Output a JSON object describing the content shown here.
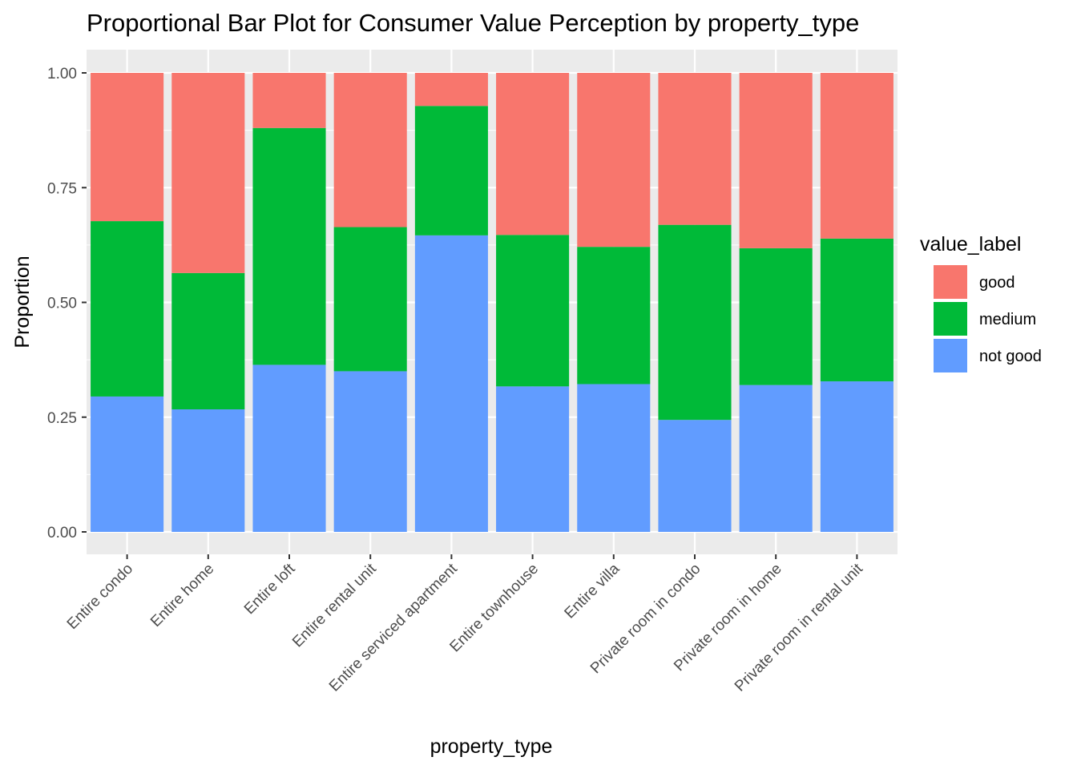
{
  "chart_data": {
    "type": "bar",
    "stacked": "proportional",
    "title": "Proportional Bar Plot for Consumer Value Perception by property_type",
    "xlabel": "property_type",
    "ylabel": "Proportion",
    "ylim": [
      0,
      1
    ],
    "yticks": [
      {
        "value": 0,
        "label": "0.00"
      },
      {
        "value": 0.25,
        "label": "0.25"
      },
      {
        "value": 0.5,
        "label": "0.50"
      },
      {
        "value": 0.75,
        "label": "0.75"
      },
      {
        "value": 1,
        "label": "1.00"
      }
    ],
    "grid": true,
    "categories": [
      "Entire condo",
      "Entire home",
      "Entire loft",
      "Entire rental unit",
      "Entire serviced apartment",
      "Entire townhouse",
      "Entire villa",
      "Private room in condo",
      "Private room in home",
      "Private room in rental unit"
    ],
    "series": [
      {
        "name": "not good",
        "color": "#619CFF",
        "values": [
          0.295,
          0.267,
          0.364,
          0.35,
          0.646,
          0.317,
          0.322,
          0.244,
          0.32,
          0.328
        ]
      },
      {
        "name": "medium",
        "color": "#00BA38",
        "values": [
          0.382,
          0.297,
          0.516,
          0.314,
          0.282,
          0.33,
          0.299,
          0.425,
          0.298,
          0.311
        ]
      },
      {
        "name": "good",
        "color": "#F8766D",
        "values": [
          0.323,
          0.436,
          0.12,
          0.336,
          0.072,
          0.353,
          0.379,
          0.331,
          0.382,
          0.361
        ]
      }
    ],
    "legend": {
      "title": "value_label",
      "position": "right",
      "items": [
        {
          "label": "good",
          "color": "#F8766D"
        },
        {
          "label": "medium",
          "color": "#00BA38"
        },
        {
          "label": "not good",
          "color": "#619CFF"
        }
      ]
    }
  }
}
